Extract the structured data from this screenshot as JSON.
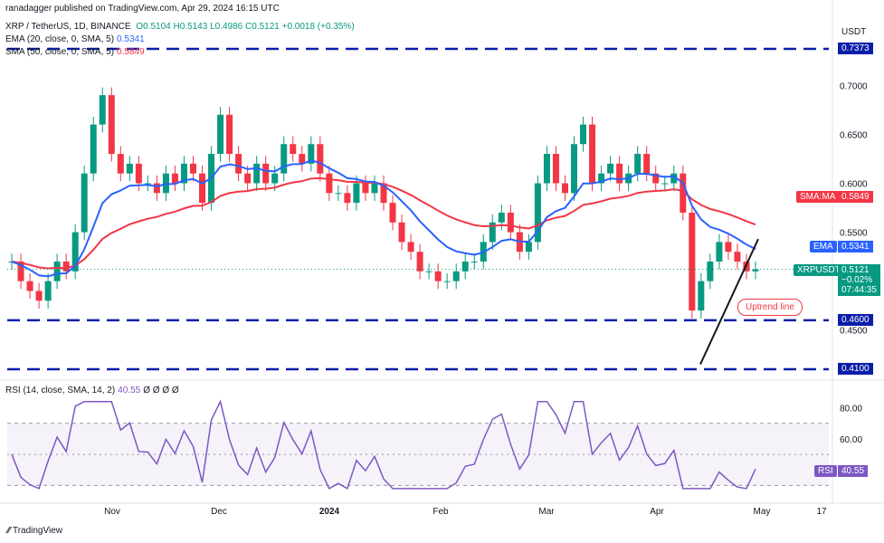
{
  "header": {
    "published": "ranadagger published on TradingView.com, Apr 29, 2024 16:15 UTC",
    "symbol": "XRP / TetherUS, 1D, BINANCE",
    "ohlc": "O0.5104 H0.5143 L0.4986 C0.5121 +0.0018 (+0.35%)",
    "ema_label": "EMA (20, close, 0, SMA, 5)",
    "ema_value": "0.5341",
    "sma_label": "SMA (50, close, 0, SMA, 5)",
    "sma_value": "0.5849",
    "currency": "USDT",
    "rsi_label": "RSI (14, close, SMA, 14, 2)",
    "rsi_value": "40.55",
    "rsi_extra": "Ø Ø Ø Ø"
  },
  "tags": {
    "sma": {
      "name": "SMA:MA",
      "value": "0.5849"
    },
    "ema": {
      "name": "EMA",
      "value": "0.5341"
    },
    "xrp": {
      "name": "XRPUSDT",
      "value": "0.5121",
      "change": "−0.02%",
      "timer": "07:44:35"
    },
    "top": "0.7373",
    "s460": "0.4600",
    "s410": "0.4100",
    "rsi": {
      "name": "RSI",
      "value": "40.55"
    }
  },
  "annotation": "Uptrend line",
  "logo": "TradingView",
  "colors": {
    "up": "#089981",
    "down": "#f23645",
    "ema": "#2962ff",
    "sma": "#f23645",
    "rsi": "#7e57c2",
    "level": "#0b1ea8"
  },
  "chart_data": {
    "type": "candlestick",
    "price_axis": {
      "min": 0.41,
      "max": 0.7373,
      "ticks": [
        "0.7000",
        "0.6500",
        "0.6000",
        "0.5500",
        "0.4500"
      ]
    },
    "time_axis": {
      "ticks": [
        "Nov",
        "Dec",
        "2024",
        "Feb",
        "Mar",
        "Apr",
        "May",
        "17"
      ]
    },
    "horizontal_levels": [
      0.7373,
      0.46,
      0.41
    ],
    "trendline": {
      "from": [
        0.415
      ],
      "to": [
        0.543
      ]
    },
    "close_series": [
      0.52,
      0.5,
      0.49,
      0.48,
      0.5,
      0.52,
      0.51,
      0.55,
      0.61,
      0.66,
      0.69,
      0.63,
      0.61,
      0.62,
      0.6,
      0.6,
      0.59,
      0.61,
      0.6,
      0.62,
      0.61,
      0.58,
      0.63,
      0.67,
      0.63,
      0.61,
      0.6,
      0.62,
      0.6,
      0.61,
      0.64,
      0.63,
      0.62,
      0.64,
      0.61,
      0.59,
      0.59,
      0.58,
      0.6,
      0.59,
      0.6,
      0.58,
      0.56,
      0.54,
      0.53,
      0.51,
      0.51,
      0.5,
      0.5,
      0.51,
      0.52,
      0.52,
      0.54,
      0.56,
      0.57,
      0.55,
      0.53,
      0.54,
      0.6,
      0.63,
      0.6,
      0.59,
      0.64,
      0.66,
      0.6,
      0.61,
      0.62,
      0.6,
      0.61,
      0.63,
      0.61,
      0.6,
      0.6,
      0.61,
      0.57,
      0.47,
      0.5,
      0.52,
      0.54,
      0.53,
      0.52,
      0.51,
      0.5121
    ],
    "ema_value": 0.5341,
    "sma_value": 0.5849,
    "rsi": {
      "ticks": [
        "80.00",
        "60.00"
      ],
      "upper": 70,
      "lower": 30,
      "current": 40.55
    }
  }
}
